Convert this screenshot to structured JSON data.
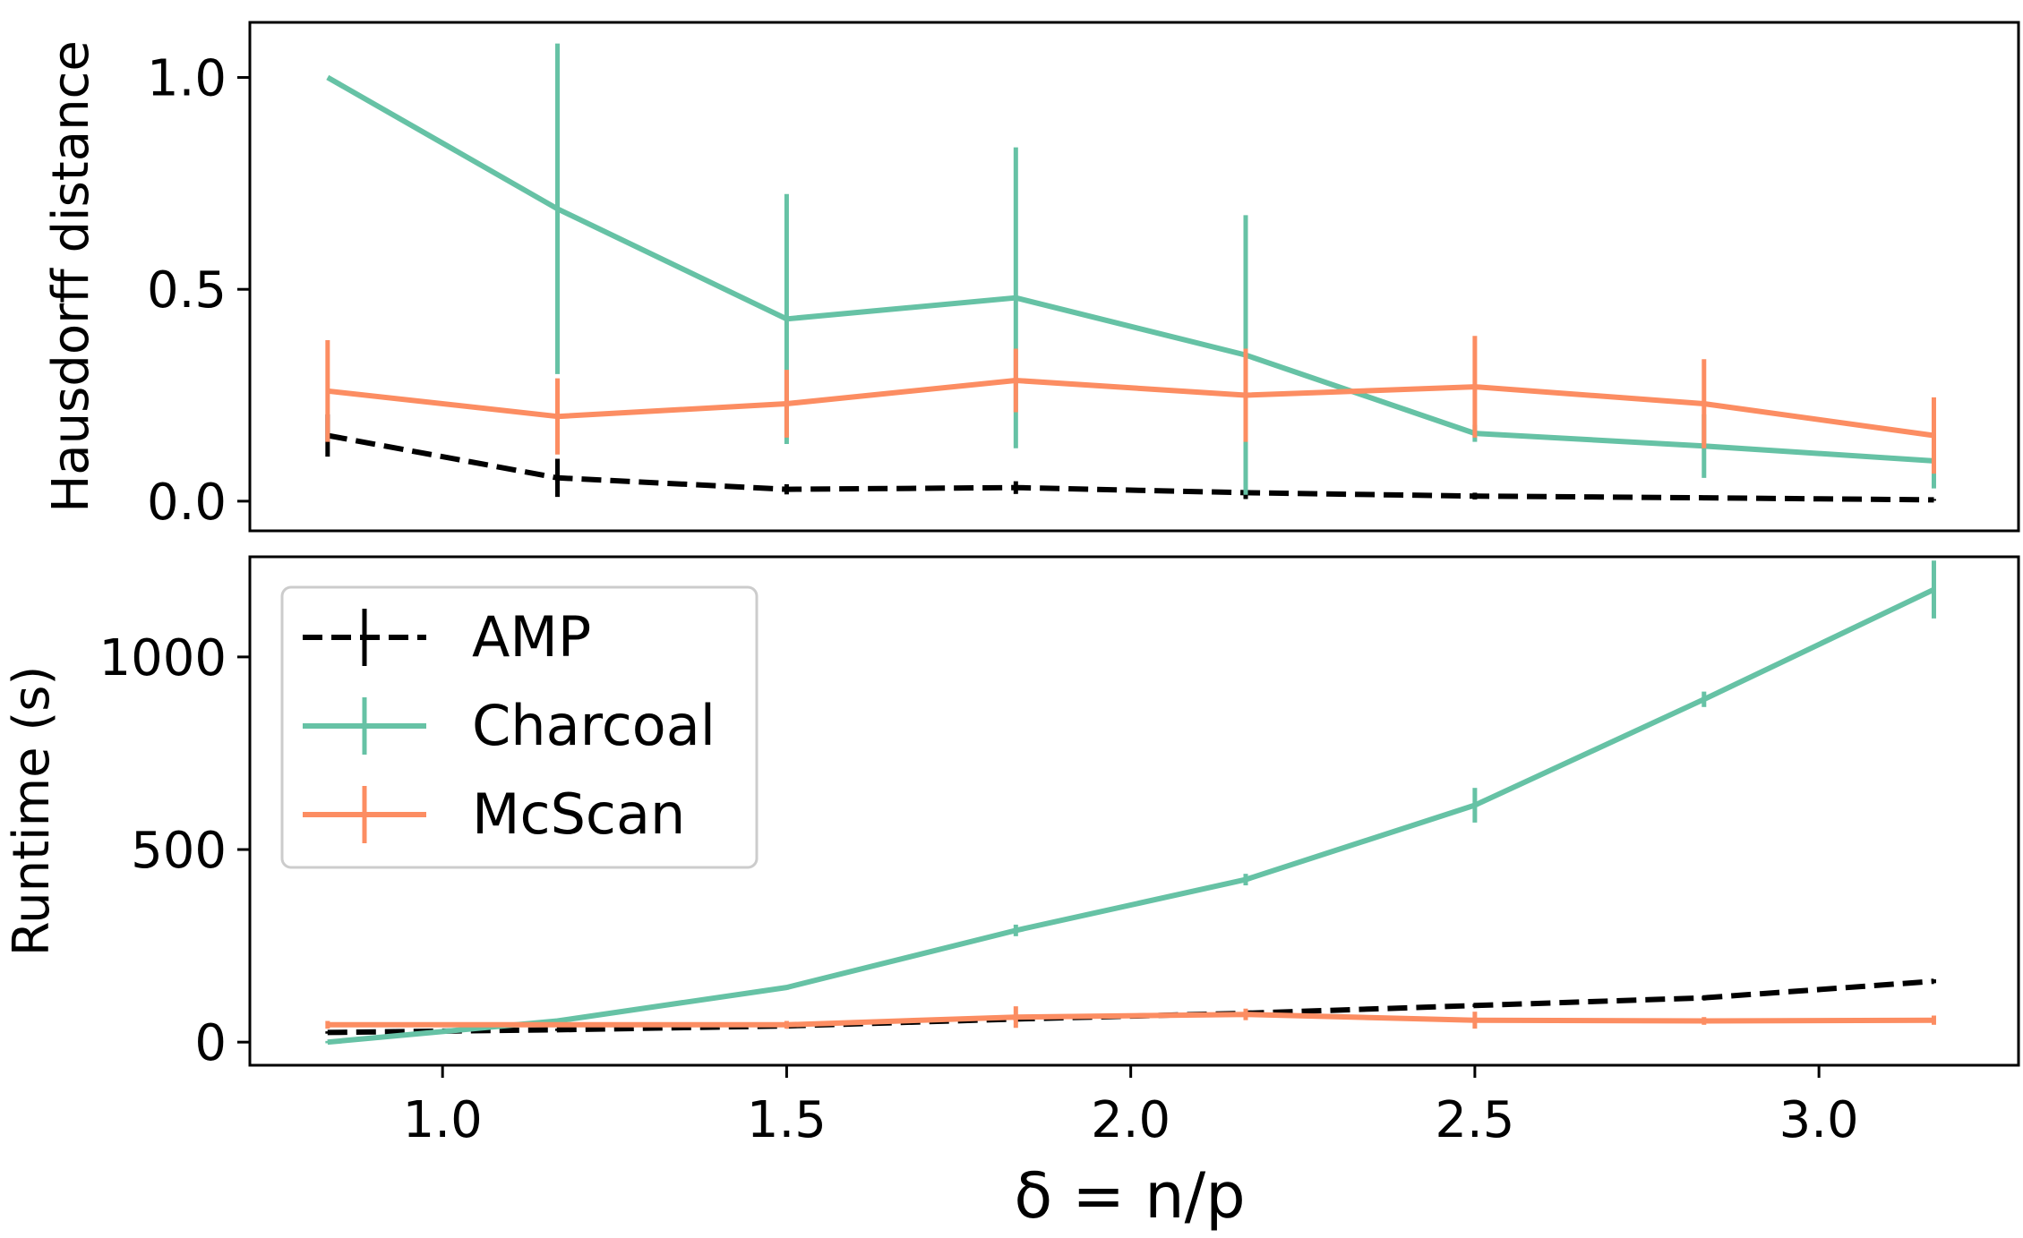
{
  "chart_data": [
    {
      "type": "line",
      "ylabel": "Hausdorff distance",
      "ylim": [
        -0.07,
        1.13
      ],
      "yticks": [
        0.0,
        0.5,
        1.0
      ],
      "yticklabels": [
        "0.0",
        "0.5",
        "1.0"
      ],
      "xlim": [
        0.72,
        3.29
      ],
      "x": [
        0.833,
        1.167,
        1.5,
        1.833,
        2.167,
        2.5,
        2.833,
        3.167
      ],
      "legend": false,
      "series": [
        {
          "name": "AMP",
          "color": "#000000",
          "dashed": true,
          "values": [
            0.155,
            0.055,
            0.028,
            0.032,
            0.02,
            0.012,
            0.008,
            0.003
          ],
          "errors": [
            0.05,
            0.045,
            0.012,
            0.015,
            0.015,
            0.008,
            0.003,
            0.002
          ]
        },
        {
          "name": "Charcoal",
          "color": "#66c2a5",
          "dashed": false,
          "values": [
            1.0,
            0.69,
            0.43,
            0.48,
            0.345,
            0.16,
            0.13,
            0.095
          ],
          "errors": [
            0.0,
            0.39,
            0.295,
            0.355,
            0.33,
            0.02,
            0.075,
            0.065
          ]
        },
        {
          "name": "McScan",
          "color": "#fc8d62",
          "dashed": false,
          "values": [
            0.26,
            0.2,
            0.23,
            0.285,
            0.25,
            0.27,
            0.23,
            0.155
          ],
          "errors": [
            0.12,
            0.09,
            0.08,
            0.075,
            0.11,
            0.12,
            0.105,
            0.09
          ]
        }
      ]
    },
    {
      "type": "line",
      "ylabel": "Runtime (s)",
      "xlabel": "δ = n/p",
      "ylim": [
        -60,
        1260
      ],
      "yticks": [
        0,
        500,
        1000
      ],
      "yticklabels": [
        "0",
        "500",
        "1000"
      ],
      "xlim": [
        0.72,
        3.29
      ],
      "xticks": [
        1.0,
        1.5,
        2.0,
        2.5,
        3.0
      ],
      "xticklabels": [
        "1.0",
        "1.5",
        "2.0",
        "2.5",
        "3.0"
      ],
      "x": [
        0.833,
        1.167,
        1.5,
        1.833,
        2.167,
        2.5,
        2.833,
        3.167
      ],
      "legend": "top-left",
      "series": [
        {
          "name": "AMP",
          "color": "#000000",
          "dashed": true,
          "values": [
            25,
            32,
            42,
            60,
            75,
            95,
            115,
            158
          ],
          "errors": [
            3,
            3,
            3,
            4,
            4,
            4,
            5,
            5
          ]
        },
        {
          "name": "Charcoal",
          "color": "#66c2a5",
          "dashed": false,
          "values": [
            0,
            55,
            142,
            290,
            422,
            615,
            890,
            1175
          ],
          "errors": [
            3,
            4,
            6,
            15,
            15,
            45,
            20,
            75
          ]
        },
        {
          "name": "McScan",
          "color": "#fc8d62",
          "dashed": false,
          "values": [
            45,
            45,
            45,
            65,
            72,
            57,
            55,
            57
          ],
          "errors": [
            10,
            5,
            10,
            28,
            15,
            22,
            10,
            12
          ]
        }
      ]
    }
  ]
}
